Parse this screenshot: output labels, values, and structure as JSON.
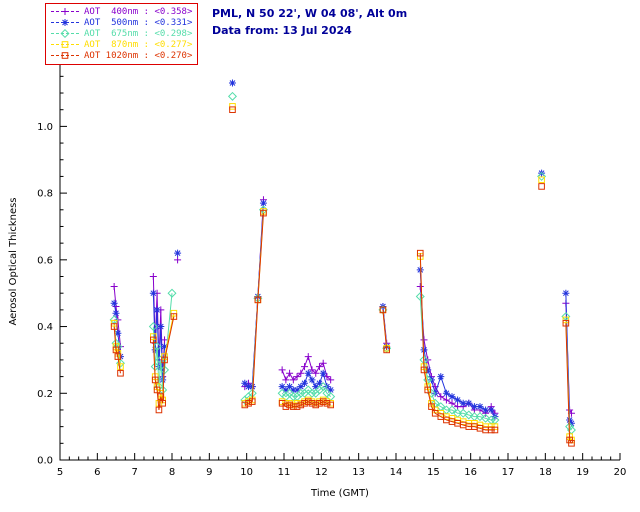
{
  "header": {
    "site": "PML, N 50 22', W 04 08', Alt 0m",
    "date": "Data from: 13 Jul 2024",
    "color": "#000099"
  },
  "legend": {
    "border_color": "#dd0000",
    "items": [
      {
        "label": "AOT  400nm : <0.358>",
        "color": "#8800cc",
        "marker": "plus"
      },
      {
        "label": "AOT  500nm : <0.331>",
        "color": "#2233dd",
        "marker": "asterisk"
      },
      {
        "label": "AOT  675nm : <0.298>",
        "color": "#55ddaa",
        "marker": "diamond"
      },
      {
        "label": "AOT  870nm : <0.277>",
        "color": "#ffdd00",
        "marker": "square"
      },
      {
        "label": "AOT 1020nm : <0.270>",
        "color": "#dd3300",
        "marker": "square"
      }
    ]
  },
  "chart_data": {
    "type": "scatter",
    "title": "",
    "xlabel": "Time (GMT)",
    "ylabel": "Aerosol Optical Thickness",
    "xlim": [
      5,
      20
    ],
    "ylim": [
      0,
      1.19
    ],
    "xticks": [
      5,
      6,
      7,
      8,
      9,
      10,
      11,
      12,
      13,
      14,
      15,
      16,
      17,
      18,
      19,
      20
    ],
    "yticks": [
      0.0,
      0.2,
      0.4,
      0.6,
      0.8,
      1.0
    ],
    "x_minor_step": 0.25,
    "y_minor_step": 0.05,
    "gap_break_hours": 0.32,
    "axis_color": "#000000",
    "legend_position": "top-left",
    "grid": false,
    "series": [
      {
        "name": "AOT 400nm",
        "wavelength_nm": 400,
        "mean": 0.358,
        "color": "#8800cc",
        "marker": "plus",
        "points": [
          [
            6.45,
            0.52
          ],
          [
            6.5,
            0.46
          ],
          [
            6.55,
            0.42
          ],
          [
            6.62,
            0.34
          ],
          [
            7.5,
            0.55
          ],
          [
            7.55,
            0.35
          ],
          [
            7.6,
            0.5
          ],
          [
            7.65,
            0.3
          ],
          [
            7.7,
            0.45
          ],
          [
            7.75,
            0.25
          ],
          [
            7.8,
            0.36
          ],
          [
            8.15,
            0.6
          ],
          [
            9.95,
            0.22
          ],
          [
            10.05,
            0.23
          ],
          [
            10.15,
            0.22
          ],
          [
            10.3,
            0.49
          ],
          [
            10.45,
            0.78
          ],
          [
            10.95,
            0.27
          ],
          [
            11.05,
            0.24
          ],
          [
            11.15,
            0.26
          ],
          [
            11.25,
            0.24
          ],
          [
            11.35,
            0.25
          ],
          [
            11.45,
            0.26
          ],
          [
            11.55,
            0.28
          ],
          [
            11.65,
            0.31
          ],
          [
            11.75,
            0.27
          ],
          [
            11.85,
            0.26
          ],
          [
            11.95,
            0.28
          ],
          [
            12.05,
            0.29
          ],
          [
            12.15,
            0.25
          ],
          [
            12.25,
            0.24
          ],
          [
            13.65,
            0.46
          ],
          [
            13.75,
            0.35
          ],
          [
            14.65,
            0.52
          ],
          [
            14.75,
            0.36
          ],
          [
            14.85,
            0.3
          ],
          [
            14.95,
            0.25
          ],
          [
            15.05,
            0.22
          ],
          [
            15.2,
            0.19
          ],
          [
            15.35,
            0.18
          ],
          [
            15.5,
            0.17
          ],
          [
            15.65,
            0.16
          ],
          [
            15.8,
            0.16
          ],
          [
            15.95,
            0.17
          ],
          [
            16.1,
            0.15
          ],
          [
            16.25,
            0.15
          ],
          [
            16.4,
            0.14
          ],
          [
            16.55,
            0.16
          ],
          [
            16.65,
            0.14
          ],
          [
            18.55,
            0.47
          ],
          [
            18.65,
            0.15
          ],
          [
            18.7,
            0.14
          ]
        ]
      },
      {
        "name": "AOT 500nm",
        "wavelength_nm": 500,
        "mean": 0.331,
        "color": "#2233dd",
        "marker": "asterisk",
        "points": [
          [
            6.45,
            0.47
          ],
          [
            6.5,
            0.44
          ],
          [
            6.55,
            0.38
          ],
          [
            6.62,
            0.31
          ],
          [
            7.5,
            0.5
          ],
          [
            7.55,
            0.33
          ],
          [
            7.6,
            0.45
          ],
          [
            7.65,
            0.28
          ],
          [
            7.7,
            0.4
          ],
          [
            7.75,
            0.24
          ],
          [
            7.8,
            0.34
          ],
          [
            8.15,
            0.62
          ],
          [
            9.62,
            1.13
          ],
          [
            9.95,
            0.23
          ],
          [
            10.05,
            0.22
          ],
          [
            10.15,
            0.22
          ],
          [
            10.3,
            0.49
          ],
          [
            10.45,
            0.77
          ],
          [
            10.95,
            0.22
          ],
          [
            11.05,
            0.21
          ],
          [
            11.15,
            0.22
          ],
          [
            11.25,
            0.21
          ],
          [
            11.35,
            0.21
          ],
          [
            11.45,
            0.22
          ],
          [
            11.55,
            0.23
          ],
          [
            11.65,
            0.26
          ],
          [
            11.75,
            0.24
          ],
          [
            11.85,
            0.22
          ],
          [
            11.95,
            0.23
          ],
          [
            12.05,
            0.26
          ],
          [
            12.15,
            0.22
          ],
          [
            12.25,
            0.21
          ],
          [
            13.65,
            0.46
          ],
          [
            13.75,
            0.34
          ],
          [
            14.65,
            0.57
          ],
          [
            14.75,
            0.33
          ],
          [
            14.85,
            0.27
          ],
          [
            14.95,
            0.24
          ],
          [
            15.05,
            0.2
          ],
          [
            15.2,
            0.25
          ],
          [
            15.35,
            0.2
          ],
          [
            15.5,
            0.19
          ],
          [
            15.65,
            0.18
          ],
          [
            15.8,
            0.17
          ],
          [
            15.95,
            0.17
          ],
          [
            16.1,
            0.16
          ],
          [
            16.25,
            0.16
          ],
          [
            16.4,
            0.15
          ],
          [
            16.55,
            0.15
          ],
          [
            16.65,
            0.13
          ],
          [
            17.9,
            0.86
          ],
          [
            18.55,
            0.5
          ],
          [
            18.65,
            0.12
          ],
          [
            18.7,
            0.11
          ]
        ]
      },
      {
        "name": "AOT 675nm",
        "wavelength_nm": 675,
        "mean": 0.298,
        "color": "#55ddaa",
        "marker": "diamond",
        "points": [
          [
            6.45,
            0.42
          ],
          [
            6.5,
            0.35
          ],
          [
            6.55,
            0.34
          ],
          [
            6.62,
            0.29
          ],
          [
            7.5,
            0.4
          ],
          [
            7.55,
            0.28
          ],
          [
            7.6,
            0.34
          ],
          [
            7.65,
            0.22
          ],
          [
            7.7,
            0.3
          ],
          [
            7.75,
            0.21
          ],
          [
            7.8,
            0.27
          ],
          [
            8.0,
            0.5
          ],
          [
            9.62,
            1.09
          ],
          [
            9.95,
            0.18
          ],
          [
            10.05,
            0.19
          ],
          [
            10.15,
            0.2
          ],
          [
            10.3,
            0.485
          ],
          [
            10.45,
            0.75
          ],
          [
            10.95,
            0.2
          ],
          [
            11.05,
            0.19
          ],
          [
            11.15,
            0.2
          ],
          [
            11.25,
            0.19
          ],
          [
            11.35,
            0.19
          ],
          [
            11.45,
            0.2
          ],
          [
            11.55,
            0.2
          ],
          [
            11.65,
            0.21
          ],
          [
            11.75,
            0.2
          ],
          [
            11.85,
            0.2
          ],
          [
            11.95,
            0.21
          ],
          [
            12.05,
            0.22
          ],
          [
            12.15,
            0.2
          ],
          [
            12.25,
            0.19
          ],
          [
            13.65,
            0.45
          ],
          [
            13.75,
            0.335
          ],
          [
            14.65,
            0.49
          ],
          [
            14.75,
            0.3
          ],
          [
            14.85,
            0.24
          ],
          [
            14.95,
            0.2
          ],
          [
            15.05,
            0.17
          ],
          [
            15.2,
            0.16
          ],
          [
            15.35,
            0.15
          ],
          [
            15.5,
            0.15
          ],
          [
            15.65,
            0.14
          ],
          [
            15.8,
            0.14
          ],
          [
            15.95,
            0.135
          ],
          [
            16.1,
            0.13
          ],
          [
            16.25,
            0.13
          ],
          [
            16.4,
            0.125
          ],
          [
            16.55,
            0.12
          ],
          [
            16.65,
            0.12
          ],
          [
            17.9,
            0.85
          ],
          [
            18.55,
            0.43
          ],
          [
            18.65,
            0.1
          ],
          [
            18.7,
            0.09
          ]
        ]
      },
      {
        "name": "AOT 870nm",
        "wavelength_nm": 870,
        "mean": 0.277,
        "color": "#ffdd00",
        "marker": "square",
        "points": [
          [
            6.45,
            0.41
          ],
          [
            6.5,
            0.34
          ],
          [
            6.55,
            0.32
          ],
          [
            6.62,
            0.28
          ],
          [
            7.5,
            0.37
          ],
          [
            7.55,
            0.25
          ],
          [
            7.6,
            0.22
          ],
          [
            7.65,
            0.17
          ],
          [
            7.7,
            0.2
          ],
          [
            7.75,
            0.18
          ],
          [
            7.8,
            0.31
          ],
          [
            8.05,
            0.44
          ],
          [
            9.62,
            1.06
          ],
          [
            9.95,
            0.17
          ],
          [
            10.05,
            0.175
          ],
          [
            10.15,
            0.18
          ],
          [
            10.3,
            0.48
          ],
          [
            10.45,
            0.745
          ],
          [
            10.95,
            0.175
          ],
          [
            11.05,
            0.17
          ],
          [
            11.15,
            0.17
          ],
          [
            11.25,
            0.165
          ],
          [
            11.35,
            0.17
          ],
          [
            11.45,
            0.17
          ],
          [
            11.55,
            0.175
          ],
          [
            11.65,
            0.18
          ],
          [
            11.75,
            0.175
          ],
          [
            11.85,
            0.17
          ],
          [
            11.95,
            0.175
          ],
          [
            12.05,
            0.18
          ],
          [
            12.15,
            0.175
          ],
          [
            12.25,
            0.17
          ],
          [
            13.65,
            0.45
          ],
          [
            13.75,
            0.335
          ],
          [
            14.65,
            0.61
          ],
          [
            14.75,
            0.28
          ],
          [
            14.85,
            0.22
          ],
          [
            14.95,
            0.17
          ],
          [
            15.05,
            0.15
          ],
          [
            15.2,
            0.14
          ],
          [
            15.35,
            0.13
          ],
          [
            15.5,
            0.125
          ],
          [
            15.65,
            0.12
          ],
          [
            15.8,
            0.115
          ],
          [
            15.95,
            0.11
          ],
          [
            16.1,
            0.11
          ],
          [
            16.25,
            0.105
          ],
          [
            16.4,
            0.1
          ],
          [
            16.55,
            0.1
          ],
          [
            16.65,
            0.1
          ],
          [
            17.9,
            0.84
          ],
          [
            18.55,
            0.42
          ],
          [
            18.65,
            0.07
          ],
          [
            18.7,
            0.06
          ]
        ]
      },
      {
        "name": "AOT 1020nm",
        "wavelength_nm": 1020,
        "mean": 0.27,
        "color": "#dd3300",
        "marker": "square",
        "points": [
          [
            6.45,
            0.4
          ],
          [
            6.5,
            0.33
          ],
          [
            6.55,
            0.31
          ],
          [
            6.62,
            0.26
          ],
          [
            7.5,
            0.36
          ],
          [
            7.55,
            0.24
          ],
          [
            7.6,
            0.21
          ],
          [
            7.65,
            0.15
          ],
          [
            7.7,
            0.19
          ],
          [
            7.75,
            0.17
          ],
          [
            7.8,
            0.3
          ],
          [
            8.05,
            0.43
          ],
          [
            9.62,
            1.05
          ],
          [
            9.95,
            0.165
          ],
          [
            10.05,
            0.17
          ],
          [
            10.15,
            0.175
          ],
          [
            10.3,
            0.48
          ],
          [
            10.45,
            0.74
          ],
          [
            10.95,
            0.17
          ],
          [
            11.05,
            0.16
          ],
          [
            11.15,
            0.165
          ],
          [
            11.25,
            0.16
          ],
          [
            11.35,
            0.16
          ],
          [
            11.45,
            0.165
          ],
          [
            11.55,
            0.17
          ],
          [
            11.65,
            0.175
          ],
          [
            11.75,
            0.17
          ],
          [
            11.85,
            0.165
          ],
          [
            11.95,
            0.17
          ],
          [
            12.05,
            0.175
          ],
          [
            12.15,
            0.17
          ],
          [
            12.25,
            0.165
          ],
          [
            13.65,
            0.45
          ],
          [
            13.75,
            0.33
          ],
          [
            14.65,
            0.62
          ],
          [
            14.75,
            0.27
          ],
          [
            14.85,
            0.21
          ],
          [
            14.95,
            0.16
          ],
          [
            15.05,
            0.14
          ],
          [
            15.2,
            0.13
          ],
          [
            15.35,
            0.12
          ],
          [
            15.5,
            0.115
          ],
          [
            15.65,
            0.11
          ],
          [
            15.8,
            0.105
          ],
          [
            15.95,
            0.1
          ],
          [
            16.1,
            0.1
          ],
          [
            16.25,
            0.095
          ],
          [
            16.4,
            0.09
          ],
          [
            16.55,
            0.09
          ],
          [
            16.65,
            0.09
          ],
          [
            17.9,
            0.82
          ],
          [
            18.55,
            0.41
          ],
          [
            18.65,
            0.06
          ],
          [
            18.7,
            0.05
          ]
        ]
      }
    ]
  }
}
